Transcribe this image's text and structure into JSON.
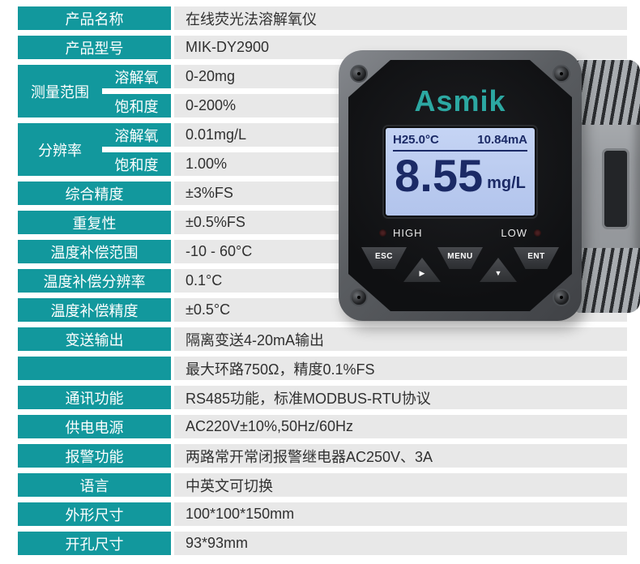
{
  "colors": {
    "accent_teal": "#12989d",
    "row_gray": "#e8e8e8",
    "logo_teal": "#2ca8a2",
    "lcd_background": "#bccdf0",
    "lcd_text": "#1b2a66"
  },
  "table": {
    "rows": [
      {
        "label": "产品名称",
        "value": "在线荧光法溶解氧仪"
      },
      {
        "label": "产品型号",
        "value": "MIK-DY2900"
      },
      {
        "label": "测量范围",
        "subs": [
          {
            "label": "溶解氧",
            "value": "0-20mg"
          },
          {
            "label": "饱和度",
            "value": "0-200%"
          }
        ]
      },
      {
        "label": "分辨率",
        "subs": [
          {
            "label": "溶解氧",
            "value": "0.01mg/L"
          },
          {
            "label": "饱和度",
            "value": "1.00%"
          }
        ]
      },
      {
        "label": "综合精度",
        "value": "±3%FS"
      },
      {
        "label": "重复性",
        "value": "±0.5%FS"
      },
      {
        "label": "温度补偿范围",
        "value": "-10 - 60°C"
      },
      {
        "label": "温度补偿分辨率",
        "value": "0.1°C"
      },
      {
        "label": "温度补偿精度",
        "value": "±0.5°C"
      },
      {
        "label": "变送输出",
        "value": "隔离变送4-20mA输出"
      },
      {
        "label": "",
        "value": "最大环路750Ω，精度0.1%FS"
      },
      {
        "label": "通讯功能",
        "value": "RS485功能，标准MODBUS-RTU协议"
      },
      {
        "label": "供电电源",
        "value": "AC220V±10%,50Hz/60Hz"
      },
      {
        "label": "报警功能",
        "value": "两路常开常闭报警继电器AC250V、3A"
      },
      {
        "label": "语言",
        "value": "中英文可切换"
      },
      {
        "label": "外形尺寸",
        "value": "100*100*150mm"
      },
      {
        "label": "开孔尺寸",
        "value": "93*93mm"
      }
    ]
  },
  "device": {
    "brand": "Asmik",
    "lcd": {
      "top_left": "H25.0°C",
      "top_right": "10.84mA",
      "reading": "8.55",
      "unit": "mg/L"
    },
    "indicator_high": "HIGH",
    "indicator_low": "LOW",
    "buttons": {
      "esc": "ESC",
      "right_arrow": "▶",
      "menu": "MENU",
      "down_arrow": "▼",
      "ent": "ENT"
    }
  }
}
